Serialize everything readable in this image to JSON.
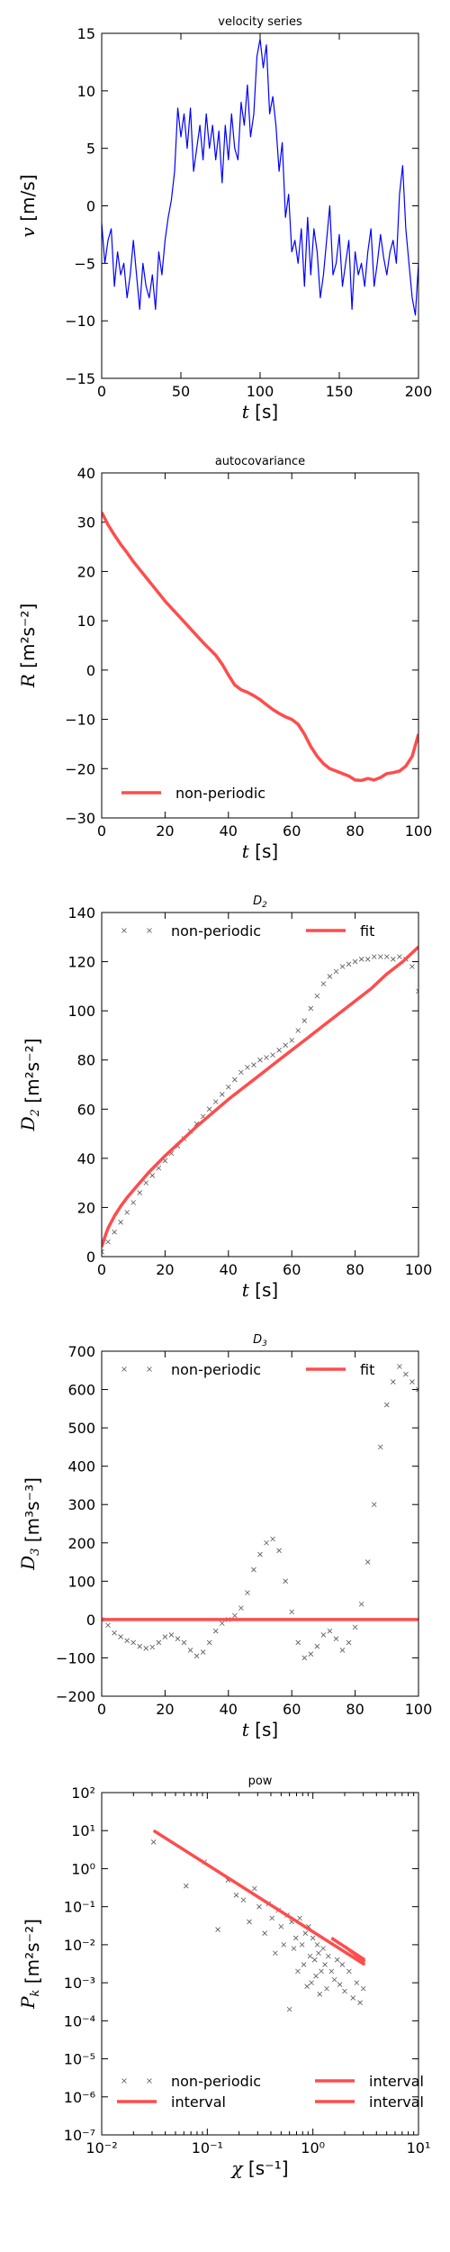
{
  "chart_data": [
    {
      "type": "line",
      "title": "velocity series",
      "xlabel": "t [s]",
      "ylabel": "v [m/s]",
      "xlim": [
        0,
        200
      ],
      "ylim": [
        -15,
        15
      ],
      "xticks": [
        "0",
        "50",
        "100",
        "150",
        "200"
      ],
      "yticks": [
        "15",
        "10",
        "5",
        "0",
        "−5",
        "−10",
        "−15"
      ],
      "grid": false,
      "series": [
        {
          "color": "#0000ff",
          "x": [
            0,
            2,
            4,
            6,
            8,
            10,
            12,
            14,
            16,
            18,
            20,
            22,
            24,
            26,
            28,
            30,
            32,
            34,
            36,
            38,
            40,
            42,
            44,
            46,
            48,
            50,
            52,
            54,
            56,
            58,
            60,
            62,
            64,
            66,
            68,
            70,
            72,
            74,
            76,
            78,
            80,
            82,
            84,
            86,
            88,
            90,
            92,
            94,
            96,
            98,
            100,
            102,
            104,
            106,
            108,
            110,
            112,
            114,
            116,
            118,
            120,
            122,
            124,
            126,
            128,
            130,
            132,
            134,
            136,
            138,
            140,
            142,
            144,
            146,
            148,
            150,
            152,
            154,
            156,
            158,
            160,
            162,
            164,
            166,
            168,
            170,
            172,
            174,
            176,
            178,
            180,
            182,
            184,
            186,
            188,
            190,
            192,
            194,
            196,
            198,
            200
          ],
          "y": [
            -1.5,
            -5,
            -3,
            -2,
            -7,
            -4,
            -6,
            -5,
            -8,
            -6,
            -3,
            -6,
            -9,
            -5,
            -7,
            -8,
            -6,
            -9,
            -4,
            -6,
            -3,
            -1,
            0.5,
            3,
            8.5,
            6,
            8,
            5,
            8.5,
            3,
            5,
            7,
            4,
            8,
            5,
            7,
            4,
            6.5,
            2,
            7,
            4,
            8,
            5,
            4,
            9,
            7,
            10.5,
            6,
            8,
            13,
            14.5,
            12,
            14,
            8,
            9.5,
            7,
            3,
            5.5,
            -1,
            1,
            -4,
            -3,
            -5,
            -2,
            -7,
            -1,
            -6,
            -2,
            -4,
            -8,
            -6,
            -3,
            0,
            -6,
            -5,
            -2.5,
            -7,
            -5,
            -3,
            -9,
            -4,
            -6,
            -5,
            -7,
            -4,
            -2,
            -7,
            -5,
            -2.5,
            -4.5,
            -6,
            -4,
            -3,
            -5,
            1,
            3.5,
            -2,
            -5,
            -8,
            -9.5,
            -5
          ]
        }
      ]
    },
    {
      "type": "line",
      "title": "autocovariance",
      "xlabel": "t [s]",
      "ylabel": "R [m²s⁻²]",
      "xlim": [
        0,
        100
      ],
      "ylim": [
        -30,
        40
      ],
      "xticks": [
        "0",
        "20",
        "40",
        "60",
        "80",
        "100"
      ],
      "yticks": [
        "40",
        "30",
        "20",
        "10",
        "0",
        "−10",
        "−20",
        "−30"
      ],
      "legend": "lower-left",
      "series": [
        {
          "name": "non-periodic",
          "color": "#ff4c4c",
          "x": [
            0,
            2,
            4,
            6,
            8,
            10,
            12,
            14,
            16,
            18,
            20,
            22,
            24,
            26,
            28,
            30,
            32,
            34,
            36,
            38,
            40,
            42,
            44,
            46,
            48,
            50,
            52,
            54,
            56,
            58,
            60,
            62,
            64,
            66,
            68,
            70,
            72,
            74,
            76,
            78,
            80,
            82,
            84,
            86,
            88,
            90,
            92,
            94,
            96,
            98,
            100
          ],
          "y": [
            32,
            29.5,
            27.4,
            25.5,
            23.8,
            22,
            20.4,
            18.8,
            17.2,
            15.6,
            14,
            12.6,
            11.2,
            9.8,
            8.4,
            7,
            5.6,
            4.3,
            3,
            1.2,
            -1,
            -3,
            -4,
            -4.5,
            -5.2,
            -6,
            -7,
            -8,
            -8.8,
            -9.5,
            -10,
            -11,
            -13,
            -15.5,
            -17.5,
            -19,
            -20,
            -20.5,
            -21,
            -21.5,
            -22.3,
            -22.4,
            -22,
            -22.3,
            -21.8,
            -21,
            -20.8,
            -20.5,
            -19.5,
            -17.5,
            -13
          ]
        }
      ]
    },
    {
      "type": "scatter",
      "title": "D₂",
      "xlabel": "t [s]",
      "ylabel": "D₂ [m²s⁻²]",
      "xlim": [
        0,
        100
      ],
      "ylim": [
        0,
        140
      ],
      "xticks": [
        "0",
        "20",
        "40",
        "60",
        "80",
        "100"
      ],
      "yticks": [
        "140",
        "120",
        "100",
        "80",
        "60",
        "40",
        "20",
        "0"
      ],
      "legend": "top",
      "series": [
        {
          "name": "non-periodic",
          "color": "#555555",
          "x": [
            0,
            2,
            4,
            6,
            8,
            10,
            12,
            14,
            16,
            18,
            20,
            22,
            24,
            26,
            28,
            30,
            32,
            34,
            36,
            38,
            40,
            42,
            44,
            46,
            48,
            50,
            52,
            54,
            56,
            58,
            60,
            62,
            64,
            66,
            68,
            70,
            72,
            74,
            76,
            78,
            80,
            82,
            84,
            86,
            88,
            90,
            92,
            94,
            96,
            98,
            100
          ],
          "y": [
            2,
            6,
            10,
            14,
            18,
            22,
            26,
            30,
            33,
            36,
            39,
            42,
            45,
            48,
            51,
            54,
            57,
            60,
            63,
            66,
            69,
            72,
            75,
            77,
            78,
            80,
            81,
            82,
            84,
            86,
            88,
            92,
            96,
            101,
            106,
            111,
            114,
            116,
            118,
            119,
            120,
            121,
            121,
            122,
            122,
            122,
            121,
            122,
            121,
            118,
            108
          ]
        },
        {
          "name": "fit",
          "color": "#ff4c4c",
          "x": [
            0,
            1,
            2,
            4,
            6,
            8,
            10,
            15,
            20,
            25,
            30,
            35,
            40,
            45,
            50,
            55,
            60,
            65,
            70,
            75,
            80,
            85,
            90,
            95,
            100
          ],
          "y": [
            4,
            8,
            11.5,
            16.5,
            20.5,
            24,
            27,
            34.5,
            41,
            47,
            53,
            58.5,
            64,
            69,
            74,
            79,
            84,
            89,
            94,
            99,
            104,
            109,
            115,
            120,
            126
          ]
        }
      ]
    },
    {
      "type": "scatter",
      "title": "D₃",
      "xlabel": "t [s]",
      "ylabel": "D₃ [m³s⁻³]",
      "xlim": [
        0,
        100
      ],
      "ylim": [
        -200,
        700
      ],
      "xticks": [
        "0",
        "20",
        "40",
        "60",
        "80",
        "100"
      ],
      "yticks": [
        "700",
        "600",
        "500",
        "400",
        "300",
        "200",
        "100",
        "0",
        "−100",
        "−200"
      ],
      "legend": "top",
      "series": [
        {
          "name": "non-periodic",
          "color": "#555555",
          "x": [
            0,
            2,
            4,
            6,
            8,
            10,
            12,
            14,
            16,
            18,
            20,
            22,
            24,
            26,
            28,
            30,
            32,
            34,
            36,
            38,
            40,
            42,
            44,
            46,
            48,
            50,
            52,
            54,
            56,
            58,
            60,
            62,
            64,
            66,
            68,
            70,
            72,
            74,
            76,
            78,
            80,
            82,
            84,
            86,
            88,
            90,
            92,
            94,
            96,
            98,
            100
          ],
          "y": [
            0,
            -15,
            -35,
            -45,
            -55,
            -60,
            -70,
            -75,
            -72,
            -60,
            -45,
            -40,
            -50,
            -60,
            -80,
            -95,
            -85,
            -60,
            -30,
            -10,
            0,
            10,
            30,
            70,
            130,
            170,
            200,
            210,
            180,
            100,
            20,
            -60,
            -100,
            -90,
            -70,
            -40,
            -30,
            -50,
            -80,
            -60,
            -20,
            40,
            150,
            300,
            450,
            560,
            620,
            660,
            640,
            620,
            600
          ]
        },
        {
          "name": "fit",
          "color": "#ff4c4c",
          "x": [
            0,
            100
          ],
          "y": [
            0,
            0
          ]
        }
      ]
    },
    {
      "type": "scatter",
      "title": "pow",
      "xlabel": "χ [s⁻¹]",
      "ylabel": "P_k [m²s⁻²]",
      "xscale": "log",
      "yscale": "log",
      "xlim": [
        0.01,
        10
      ],
      "ylim": [
        1e-07,
        100
      ],
      "xticks": [
        "10⁻²",
        "10⁻¹",
        "10⁰",
        "10¹"
      ],
      "yticks": [
        "10²",
        "10¹",
        "10⁰",
        "10⁻¹",
        "10⁻²",
        "10⁻³",
        "10⁻⁴",
        "10⁻⁵",
        "10⁻⁶",
        "10⁻⁷"
      ],
      "legend": "bottom",
      "series": [
        {
          "name": "non-periodic",
          "color": "#555555",
          "x": [
            0.031,
            0.063,
            0.094,
            0.126,
            0.157,
            0.188,
            0.22,
            0.25,
            0.28,
            0.31,
            0.35,
            0.38,
            0.41,
            0.44,
            0.47,
            0.5,
            0.53,
            0.57,
            0.6,
            0.63,
            0.66,
            0.69,
            0.72,
            0.75,
            0.79,
            0.82,
            0.85,
            0.88,
            0.91,
            0.94,
            0.97,
            1.0,
            1.04,
            1.07,
            1.1,
            1.13,
            1.16,
            1.2,
            1.25,
            1.3,
            1.35,
            1.4,
            1.5,
            1.6,
            1.7,
            1.8,
            1.9,
            2.0,
            2.2,
            2.4,
            2.6,
            2.8,
            3.0
          ],
          "y": [
            5,
            0.35,
            1.5,
            0.025,
            0.5,
            0.2,
            0.15,
            0.04,
            0.3,
            0.1,
            0.02,
            0.12,
            0.05,
            0.006,
            0.08,
            0.03,
            0.01,
            0.06,
            0.0002,
            0.04,
            0.008,
            0.015,
            0.002,
            0.05,
            0.01,
            0.003,
            0.02,
            0.0008,
            0.03,
            0.005,
            0.001,
            0.015,
            0.004,
            0.0015,
            0.01,
            0.006,
            0.0005,
            0.002,
            0.008,
            0.003,
            0.0007,
            0.005,
            0.002,
            0.0012,
            0.004,
            0.0009,
            0.003,
            0.0006,
            0.002,
            0.0004,
            0.001,
            0.0003,
            0.0007
          ]
        },
        {
          "name": "interval",
          "color": "#ff4c4c",
          "x": [
            0.031,
            3.1
          ],
          "y": [
            10,
            0.003
          ]
        },
        {
          "name": "interval",
          "color": "#ff4c4c",
          "x": [
            1.5,
            3.1
          ],
          "y": [
            0.015,
            0.004
          ]
        },
        {
          "name": "interval",
          "color": "#ff4c4c",
          "x": [
            2.0,
            3.1
          ],
          "y": [
            0.009,
            0.0035
          ]
        }
      ]
    }
  ]
}
